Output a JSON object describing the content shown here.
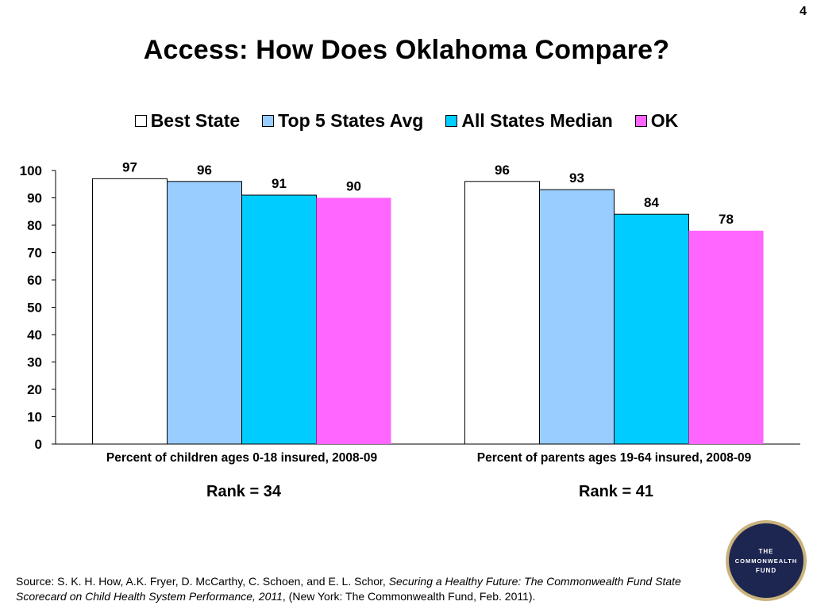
{
  "page": {
    "slide_number": "4",
    "title": "Access: How Does Oklahoma Compare?",
    "rank_left": "Rank = 34",
    "rank_right": "Rank = 41",
    "source_prefix": "Source: S. K. H. How, A.K. Fryer, D. McCarthy, C. Schoen, and E. L. Schor, ",
    "source_italic": "Securing a Healthy Future: The Commonwealth Fund State Scorecard on Child Health System Performance, 2011",
    "source_suffix": ", (New York: The Commonwealth Fund, Feb. 2011).",
    "logo_text": [
      "THE",
      "COMMONWEALTH",
      "FUND"
    ]
  },
  "chart_data": {
    "type": "bar",
    "categories": [
      "Percent of children ages 0-18 insured, 2008-09",
      "Percent of parents ages 19-64 insured, 2008-09"
    ],
    "series": [
      {
        "name": "Best State",
        "color": "#ffffff",
        "values": [
          97,
          96
        ]
      },
      {
        "name": "Top 5 States Avg",
        "color": "#99ccff",
        "values": [
          96,
          93
        ]
      },
      {
        "name": "All States Median",
        "color": "#00ccff",
        "values": [
          91,
          84
        ]
      },
      {
        "name": "OK",
        "color": "#ff66ff",
        "values": [
          90,
          78
        ]
      }
    ],
    "ylim": [
      0,
      100
    ],
    "yticks": [
      "0",
      "10",
      "20",
      "30",
      "40",
      "50",
      "60",
      "70",
      "80",
      "90",
      "100"
    ],
    "legend": "top",
    "grid": false
  }
}
